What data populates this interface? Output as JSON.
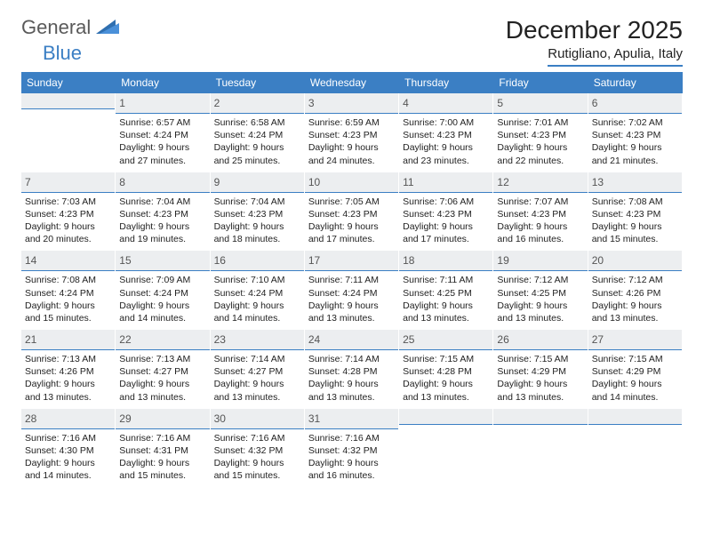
{
  "logo": {
    "part1": "General",
    "part2": "Blue"
  },
  "title": "December 2025",
  "location": "Rutigliano, Apulia, Italy",
  "colors": {
    "header_bg": "#3b7fc4",
    "daynum_bg": "#eceef0",
    "text": "#222222",
    "logo_gray": "#5a5a5a",
    "logo_blue": "#3b7fc4"
  },
  "day_names": [
    "Sunday",
    "Monday",
    "Tuesday",
    "Wednesday",
    "Thursday",
    "Friday",
    "Saturday"
  ],
  "weeks": [
    [
      {
        "day": "",
        "sunrise": "",
        "sunset": "",
        "daylight": ""
      },
      {
        "day": "1",
        "sunrise": "Sunrise: 6:57 AM",
        "sunset": "Sunset: 4:24 PM",
        "daylight": "Daylight: 9 hours and 27 minutes."
      },
      {
        "day": "2",
        "sunrise": "Sunrise: 6:58 AM",
        "sunset": "Sunset: 4:24 PM",
        "daylight": "Daylight: 9 hours and 25 minutes."
      },
      {
        "day": "3",
        "sunrise": "Sunrise: 6:59 AM",
        "sunset": "Sunset: 4:23 PM",
        "daylight": "Daylight: 9 hours and 24 minutes."
      },
      {
        "day": "4",
        "sunrise": "Sunrise: 7:00 AM",
        "sunset": "Sunset: 4:23 PM",
        "daylight": "Daylight: 9 hours and 23 minutes."
      },
      {
        "day": "5",
        "sunrise": "Sunrise: 7:01 AM",
        "sunset": "Sunset: 4:23 PM",
        "daylight": "Daylight: 9 hours and 22 minutes."
      },
      {
        "day": "6",
        "sunrise": "Sunrise: 7:02 AM",
        "sunset": "Sunset: 4:23 PM",
        "daylight": "Daylight: 9 hours and 21 minutes."
      }
    ],
    [
      {
        "day": "7",
        "sunrise": "Sunrise: 7:03 AM",
        "sunset": "Sunset: 4:23 PM",
        "daylight": "Daylight: 9 hours and 20 minutes."
      },
      {
        "day": "8",
        "sunrise": "Sunrise: 7:04 AM",
        "sunset": "Sunset: 4:23 PM",
        "daylight": "Daylight: 9 hours and 19 minutes."
      },
      {
        "day": "9",
        "sunrise": "Sunrise: 7:04 AM",
        "sunset": "Sunset: 4:23 PM",
        "daylight": "Daylight: 9 hours and 18 minutes."
      },
      {
        "day": "10",
        "sunrise": "Sunrise: 7:05 AM",
        "sunset": "Sunset: 4:23 PM",
        "daylight": "Daylight: 9 hours and 17 minutes."
      },
      {
        "day": "11",
        "sunrise": "Sunrise: 7:06 AM",
        "sunset": "Sunset: 4:23 PM",
        "daylight": "Daylight: 9 hours and 17 minutes."
      },
      {
        "day": "12",
        "sunrise": "Sunrise: 7:07 AM",
        "sunset": "Sunset: 4:23 PM",
        "daylight": "Daylight: 9 hours and 16 minutes."
      },
      {
        "day": "13",
        "sunrise": "Sunrise: 7:08 AM",
        "sunset": "Sunset: 4:23 PM",
        "daylight": "Daylight: 9 hours and 15 minutes."
      }
    ],
    [
      {
        "day": "14",
        "sunrise": "Sunrise: 7:08 AM",
        "sunset": "Sunset: 4:24 PM",
        "daylight": "Daylight: 9 hours and 15 minutes."
      },
      {
        "day": "15",
        "sunrise": "Sunrise: 7:09 AM",
        "sunset": "Sunset: 4:24 PM",
        "daylight": "Daylight: 9 hours and 14 minutes."
      },
      {
        "day": "16",
        "sunrise": "Sunrise: 7:10 AM",
        "sunset": "Sunset: 4:24 PM",
        "daylight": "Daylight: 9 hours and 14 minutes."
      },
      {
        "day": "17",
        "sunrise": "Sunrise: 7:11 AM",
        "sunset": "Sunset: 4:24 PM",
        "daylight": "Daylight: 9 hours and 13 minutes."
      },
      {
        "day": "18",
        "sunrise": "Sunrise: 7:11 AM",
        "sunset": "Sunset: 4:25 PM",
        "daylight": "Daylight: 9 hours and 13 minutes."
      },
      {
        "day": "19",
        "sunrise": "Sunrise: 7:12 AM",
        "sunset": "Sunset: 4:25 PM",
        "daylight": "Daylight: 9 hours and 13 minutes."
      },
      {
        "day": "20",
        "sunrise": "Sunrise: 7:12 AM",
        "sunset": "Sunset: 4:26 PM",
        "daylight": "Daylight: 9 hours and 13 minutes."
      }
    ],
    [
      {
        "day": "21",
        "sunrise": "Sunrise: 7:13 AM",
        "sunset": "Sunset: 4:26 PM",
        "daylight": "Daylight: 9 hours and 13 minutes."
      },
      {
        "day": "22",
        "sunrise": "Sunrise: 7:13 AM",
        "sunset": "Sunset: 4:27 PM",
        "daylight": "Daylight: 9 hours and 13 minutes."
      },
      {
        "day": "23",
        "sunrise": "Sunrise: 7:14 AM",
        "sunset": "Sunset: 4:27 PM",
        "daylight": "Daylight: 9 hours and 13 minutes."
      },
      {
        "day": "24",
        "sunrise": "Sunrise: 7:14 AM",
        "sunset": "Sunset: 4:28 PM",
        "daylight": "Daylight: 9 hours and 13 minutes."
      },
      {
        "day": "25",
        "sunrise": "Sunrise: 7:15 AM",
        "sunset": "Sunset: 4:28 PM",
        "daylight": "Daylight: 9 hours and 13 minutes."
      },
      {
        "day": "26",
        "sunrise": "Sunrise: 7:15 AM",
        "sunset": "Sunset: 4:29 PM",
        "daylight": "Daylight: 9 hours and 13 minutes."
      },
      {
        "day": "27",
        "sunrise": "Sunrise: 7:15 AM",
        "sunset": "Sunset: 4:29 PM",
        "daylight": "Daylight: 9 hours and 14 minutes."
      }
    ],
    [
      {
        "day": "28",
        "sunrise": "Sunrise: 7:16 AM",
        "sunset": "Sunset: 4:30 PM",
        "daylight": "Daylight: 9 hours and 14 minutes."
      },
      {
        "day": "29",
        "sunrise": "Sunrise: 7:16 AM",
        "sunset": "Sunset: 4:31 PM",
        "daylight": "Daylight: 9 hours and 15 minutes."
      },
      {
        "day": "30",
        "sunrise": "Sunrise: 7:16 AM",
        "sunset": "Sunset: 4:32 PM",
        "daylight": "Daylight: 9 hours and 15 minutes."
      },
      {
        "day": "31",
        "sunrise": "Sunrise: 7:16 AM",
        "sunset": "Sunset: 4:32 PM",
        "daylight": "Daylight: 9 hours and 16 minutes."
      },
      {
        "day": "",
        "sunrise": "",
        "sunset": "",
        "daylight": ""
      },
      {
        "day": "",
        "sunrise": "",
        "sunset": "",
        "daylight": ""
      },
      {
        "day": "",
        "sunrise": "",
        "sunset": "",
        "daylight": ""
      }
    ]
  ]
}
